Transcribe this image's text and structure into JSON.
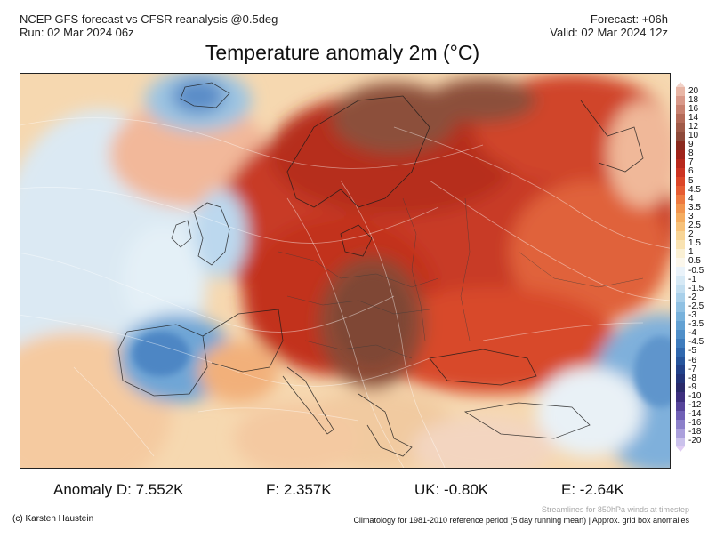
{
  "header": {
    "source_line": "NCEP GFS forecast vs CFSR reanalysis @0.5deg",
    "run_line": "Run: 02 Mar 2024 06z",
    "forecast_line": "Forecast: +06h",
    "valid_line": "Valid: 02 Mar 2024 12z"
  },
  "title": "Temperature anomaly 2m (°C)",
  "colorbar": {
    "labels": [
      "20",
      "18",
      "16",
      "14",
      "12",
      "10",
      "9",
      "8",
      "7",
      "6",
      "5",
      "4.5",
      "4",
      "3.5",
      "3",
      "2.5",
      "2",
      "1.5",
      "1",
      "0.5",
      "-0.5",
      "-1",
      "-1.5",
      "-2",
      "-2.5",
      "-3",
      "-3.5",
      "-4",
      "-4.5",
      "-5",
      "-6",
      "-7",
      "-8",
      "-9",
      "-10",
      "-12",
      "-14",
      "-16",
      "-18",
      "-20"
    ],
    "colors": [
      "#e9b6a6",
      "#d9998a",
      "#c88170",
      "#b46a58",
      "#a05a48",
      "#8e4a3a",
      "#8a2a1e",
      "#a0231a",
      "#b8281c",
      "#cc3322",
      "#dc4628",
      "#e65c32",
      "#ee7a40",
      "#f2954e",
      "#f5ad60",
      "#f7c27a",
      "#f8d596",
      "#f9e3b2",
      "#faf0d4",
      "#fbf7ec",
      "#eaf3fa",
      "#d6e9f5",
      "#c2def0",
      "#a9d0ea",
      "#90c1e3",
      "#78b2dc",
      "#62a1d3",
      "#4f8fc9",
      "#3e7cbd",
      "#3068ae",
      "#26559c",
      "#22428a",
      "#233479",
      "#2a2a6a",
      "#3d2f7e",
      "#56449a",
      "#7060b6",
      "#8c80ca",
      "#aba0dc",
      "#cbc2ec"
    ]
  },
  "stats": {
    "d": "Anomaly D: 7.552K",
    "f": "F: 2.357K",
    "uk": "UK: -0.80K",
    "e": "E: -2.64K"
  },
  "footer": {
    "credit": "(c) Karsten Haustein",
    "stream_note": "Streamlines for 850hPa winds at timestep",
    "climatology": "Climatology for 1981-2010 reference period (5 day running mean) | Approx. grid box anomalies"
  }
}
